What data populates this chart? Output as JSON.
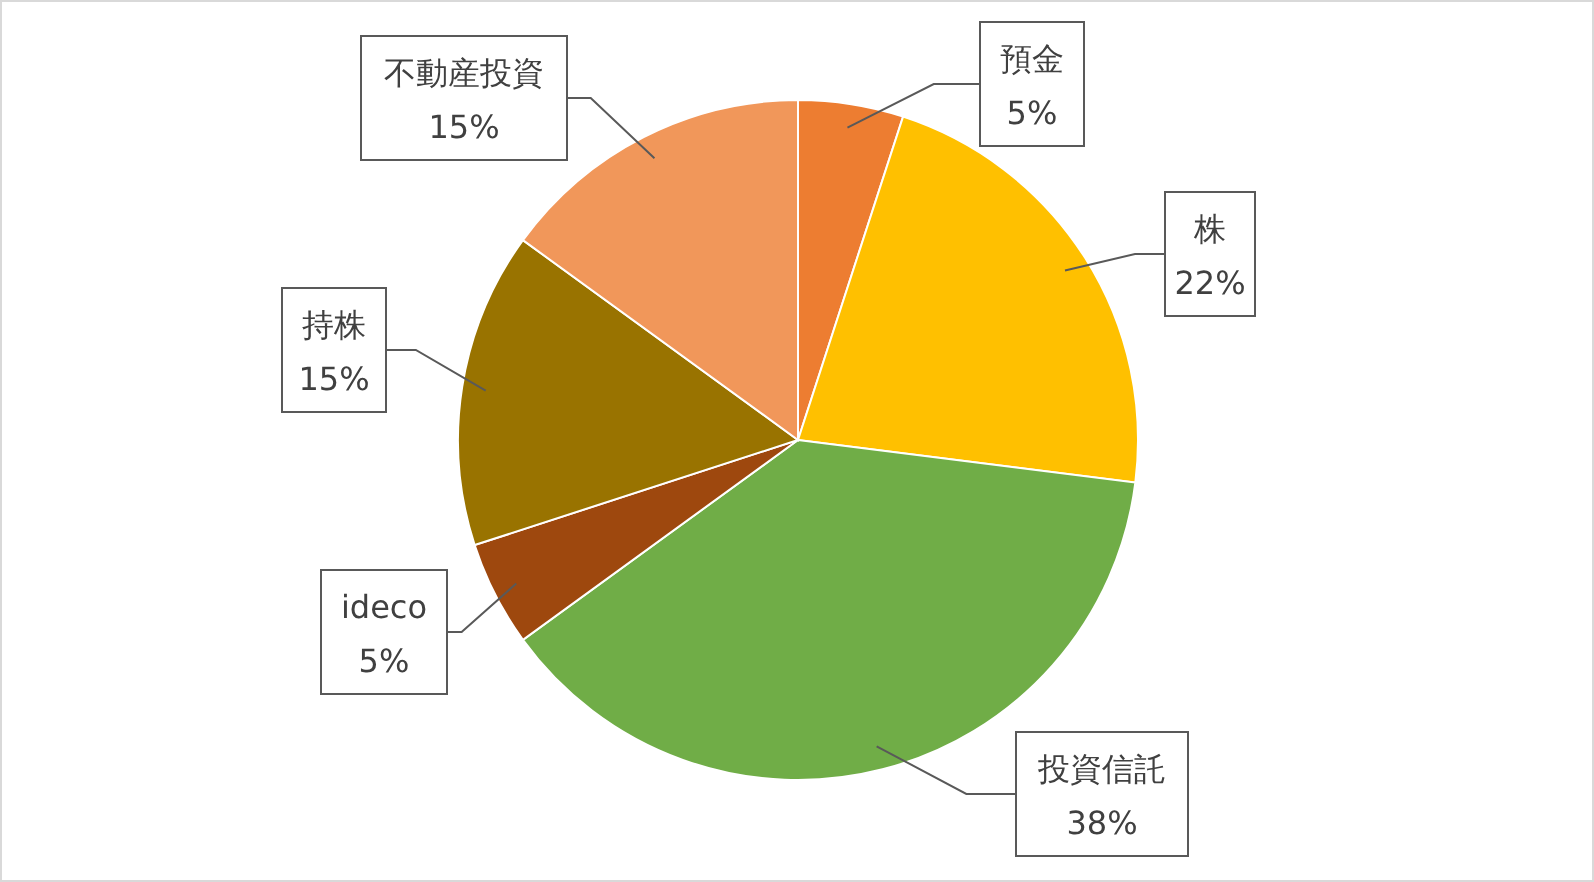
{
  "chart_data": {
    "type": "pie",
    "categories": [
      "預金",
      "株",
      "投資信託",
      "ideco",
      "持株",
      "不動産投資"
    ],
    "values": [
      5,
      22,
      38,
      5,
      15,
      15
    ],
    "value_labels": [
      "5%",
      "22%",
      "38%",
      "5%",
      "15%",
      "15%"
    ],
    "colors": [
      "#ed7d31",
      "#ffc000",
      "#70ad47",
      "#9e480e",
      "#997300",
      "#f1975a"
    ]
  }
}
